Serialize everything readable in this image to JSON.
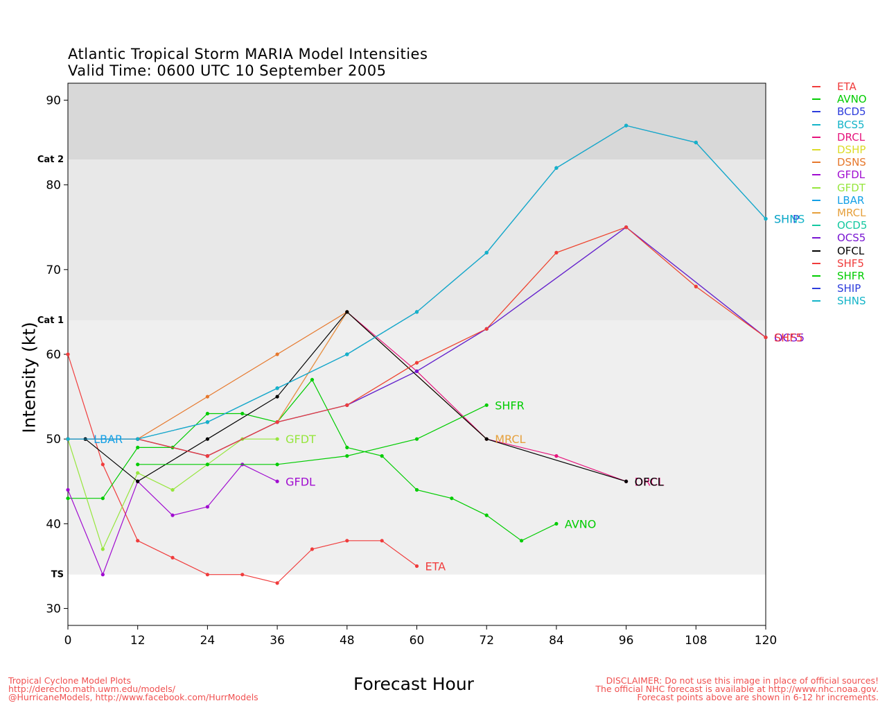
{
  "title_line1": "Atlantic Tropical Storm MARIA Model Intensities",
  "title_line2": "Valid Time: 0600 UTC 10 September 2005",
  "footer_left": {
    "line1": "Tropical Cyclone Model Plots",
    "line2": "http://derecho.math.uwm.edu/models/",
    "line3": "@HurricaneModels, http://www.facebook.com/HurrModels"
  },
  "footer_right": {
    "line1": "DISCLAIMER: Do not use this image in place of official sources!",
    "line2": "The official NHC forecast is available at http://www.nhc.noaa.gov.",
    "line3": "Forecast points above are shown in 6-12 hr increments."
  },
  "chart_data": {
    "type": "line",
    "title": "Atlantic Tropical Storm MARIA Model Intensities",
    "subtitle": "Valid Time: 0600 UTC 10 September 2005",
    "xlabel": "Forecast Hour",
    "ylabel": "Intensity (kt)",
    "xlim": [
      0,
      120
    ],
    "ylim": [
      28,
      92
    ],
    "xticks": [
      0,
      12,
      24,
      36,
      48,
      60,
      72,
      84,
      96,
      108,
      120
    ],
    "yticks": [
      30,
      40,
      50,
      60,
      70,
      80,
      90
    ],
    "bands": [
      {
        "label": "",
        "from": 28,
        "to": 34,
        "color": "#ffffff"
      },
      {
        "label": "TS",
        "from": 34,
        "to": 64,
        "color": "#efefef"
      },
      {
        "label": "Cat 1",
        "from": 64,
        "to": 83,
        "color": "#e8e8e8"
      },
      {
        "label": "Cat 2",
        "from": 83,
        "to": 92,
        "color": "#d8d8d8"
      }
    ],
    "legend_position": "right",
    "series": [
      {
        "name": "ETA",
        "color": "#f03c3c",
        "label": "ETA",
        "points": [
          [
            0,
            60
          ],
          [
            6,
            47
          ],
          [
            12,
            38
          ],
          [
            18,
            36
          ],
          [
            24,
            34
          ],
          [
            30,
            34
          ],
          [
            36,
            33
          ],
          [
            42,
            37
          ],
          [
            48,
            38
          ],
          [
            54,
            38
          ],
          [
            60,
            35
          ]
        ]
      },
      {
        "name": "AVNO",
        "color": "#00cc00",
        "label": "AVNO",
        "points": [
          [
            0,
            43
          ],
          [
            6,
            43
          ],
          [
            12,
            49
          ],
          [
            18,
            49
          ],
          [
            24,
            53
          ],
          [
            30,
            53
          ],
          [
            36,
            52
          ],
          [
            42,
            57
          ],
          [
            48,
            49
          ],
          [
            54,
            48
          ],
          [
            60,
            44
          ],
          [
            66,
            43
          ],
          [
            72,
            41
          ],
          [
            78,
            38
          ],
          [
            84,
            40
          ]
        ]
      },
      {
        "name": "BCD5",
        "color": "#2c3cdc",
        "label": "",
        "points": [
          [
            0,
            50
          ],
          [
            12,
            50
          ],
          [
            24,
            48
          ],
          [
            36,
            52
          ],
          [
            48,
            54
          ],
          [
            60,
            58
          ],
          [
            72,
            63
          ],
          [
            96,
            75
          ],
          [
            120,
            62
          ]
        ]
      },
      {
        "name": "BCS5",
        "color": "#14b4c8",
        "label": "",
        "points": [
          [
            0,
            50
          ],
          [
            12,
            50
          ],
          [
            24,
            52
          ],
          [
            36,
            56
          ],
          [
            48,
            60
          ],
          [
            60,
            65
          ],
          [
            72,
            72
          ],
          [
            84,
            82
          ],
          [
            96,
            87
          ],
          [
            108,
            85
          ],
          [
            120,
            76
          ]
        ]
      },
      {
        "name": "DRCL",
        "color": "#e6147c",
        "label": "DRCL",
        "points": [
          [
            0,
            50
          ],
          [
            12,
            50
          ],
          [
            24,
            48
          ],
          [
            36,
            52
          ],
          [
            48,
            65
          ],
          [
            60,
            58
          ],
          [
            72,
            50
          ],
          [
            84,
            48
          ],
          [
            96,
            45
          ]
        ]
      },
      {
        "name": "DSHP",
        "color": "#dcdc28",
        "label": "",
        "points": [
          [
            0,
            50
          ],
          [
            12,
            50
          ],
          [
            24,
            48
          ],
          [
            36,
            52
          ],
          [
            48,
            54
          ],
          [
            60,
            59
          ],
          [
            72,
            63
          ],
          [
            84,
            72
          ],
          [
            96,
            75
          ],
          [
            108,
            68
          ],
          [
            120,
            62
          ]
        ]
      },
      {
        "name": "DSNS",
        "color": "#e6782c",
        "label": "",
        "points": [
          [
            0,
            50
          ],
          [
            12,
            50
          ],
          [
            24,
            55
          ],
          [
            36,
            60
          ],
          [
            48,
            65
          ]
        ]
      },
      {
        "name": "GFDL",
        "color": "#a00cd0",
        "label": "GFDL",
        "points": [
          [
            0,
            44
          ],
          [
            6,
            34
          ],
          [
            12,
            45
          ],
          [
            18,
            41
          ],
          [
            24,
            42
          ],
          [
            30,
            47
          ],
          [
            36,
            45
          ]
        ]
      },
      {
        "name": "GFDT",
        "color": "#96e63c",
        "label": "GFDT",
        "points": [
          [
            0,
            50
          ],
          [
            6,
            37
          ],
          [
            12,
            46
          ],
          [
            18,
            44
          ],
          [
            24,
            47
          ],
          [
            30,
            50
          ],
          [
            36,
            50
          ]
        ]
      },
      {
        "name": "LBAR",
        "color": "#14a0e6",
        "label": "LBAR",
        "points": [
          [
            0,
            50
          ],
          [
            3,
            50
          ]
        ]
      },
      {
        "name": "MRCL",
        "color": "#e6a03c",
        "label": "MRCL",
        "points": [
          [
            0,
            50
          ],
          [
            12,
            50
          ],
          [
            24,
            48
          ],
          [
            36,
            52
          ],
          [
            48,
            65
          ],
          [
            72,
            50
          ]
        ]
      },
      {
        "name": "OCD5",
        "color": "#14c8a0",
        "label": "",
        "points": [
          [
            0,
            50
          ],
          [
            12,
            50
          ],
          [
            24,
            48
          ],
          [
            36,
            52
          ],
          [
            48,
            54
          ],
          [
            60,
            58
          ],
          [
            72,
            63
          ],
          [
            96,
            75
          ],
          [
            120,
            62
          ]
        ]
      },
      {
        "name": "OCS5",
        "color": "#7814d2",
        "label": "",
        "points": [
          [
            0,
            50
          ],
          [
            12,
            50
          ],
          [
            24,
            48
          ],
          [
            36,
            52
          ],
          [
            48,
            54
          ],
          [
            60,
            58
          ],
          [
            72,
            63
          ],
          [
            96,
            75
          ],
          [
            120,
            62
          ]
        ]
      },
      {
        "name": "OFCL",
        "color": "#000000",
        "label": "OFCL",
        "points": [
          [
            3,
            50
          ],
          [
            12,
            45
          ],
          [
            24,
            50
          ],
          [
            36,
            55
          ],
          [
            48,
            65
          ],
          [
            72,
            50
          ],
          [
            96,
            45
          ]
        ]
      },
      {
        "name": "SHF5",
        "color": "#f03c3c",
        "label": "SHF5",
        "points": [
          [
            0,
            50
          ],
          [
            12,
            50
          ],
          [
            24,
            48
          ],
          [
            36,
            52
          ],
          [
            48,
            54
          ],
          [
            60,
            59
          ],
          [
            72,
            63
          ],
          [
            84,
            72
          ],
          [
            96,
            75
          ],
          [
            108,
            68
          ],
          [
            120,
            62
          ]
        ]
      },
      {
        "name": "SHFR",
        "color": "#00cc00",
        "label": "SHFR",
        "points": [
          [
            12,
            47
          ],
          [
            24,
            47
          ],
          [
            36,
            47
          ],
          [
            48,
            48
          ],
          [
            60,
            50
          ],
          [
            72,
            54
          ]
        ]
      },
      {
        "name": "SHIP",
        "color": "#2c3cdc",
        "label": "SHIP",
        "points": [
          [
            0,
            50
          ],
          [
            12,
            50
          ],
          [
            24,
            52
          ],
          [
            36,
            56
          ],
          [
            48,
            60
          ],
          [
            60,
            65
          ],
          [
            72,
            72
          ],
          [
            84,
            82
          ],
          [
            96,
            87
          ],
          [
            108,
            85
          ],
          [
            120,
            76
          ]
        ]
      },
      {
        "name": "SHNS",
        "color": "#14b4c8",
        "label": "SHNS",
        "points": [
          [
            0,
            50
          ],
          [
            12,
            50
          ],
          [
            24,
            52
          ],
          [
            36,
            56
          ],
          [
            48,
            60
          ],
          [
            60,
            65
          ],
          [
            72,
            72
          ],
          [
            84,
            82
          ],
          [
            96,
            87
          ],
          [
            108,
            85
          ],
          [
            120,
            76
          ]
        ]
      }
    ],
    "end_labels": [
      {
        "text": "LBAR",
        "x": 3,
        "y": 50,
        "color": "#14a0e6"
      },
      {
        "text": "GFDT",
        "x": 36,
        "y": 50,
        "color": "#96e63c"
      },
      {
        "text": "GFDL",
        "x": 36,
        "y": 45,
        "color": "#a00cd0"
      },
      {
        "text": "ETA",
        "x": 60,
        "y": 35,
        "color": "#f03c3c"
      },
      {
        "text": "SHFR",
        "x": 72,
        "y": 54,
        "color": "#00cc00"
      },
      {
        "text": "MRCL",
        "x": 72,
        "y": 50,
        "color": "#e6a03c"
      },
      {
        "text": "AVNO",
        "x": 84,
        "y": 40,
        "color": "#00cc00"
      },
      {
        "text": "DRCL",
        "x": 96,
        "y": 45,
        "color": "#e6147c"
      },
      {
        "text": "OFCL",
        "x": 96,
        "y": 45,
        "color": "#000000"
      },
      {
        "text": "SHIP",
        "x": 120,
        "y": 76,
        "color": "#2c3cdc"
      },
      {
        "text": "SHNS",
        "x": 120,
        "y": 76,
        "color": "#14b4c8"
      },
      {
        "text": "OCS5",
        "x": 120,
        "y": 62,
        "color": "#7814d2"
      },
      {
        "text": "SHF5",
        "x": 120,
        "y": 62,
        "color": "#f03c3c"
      }
    ]
  }
}
